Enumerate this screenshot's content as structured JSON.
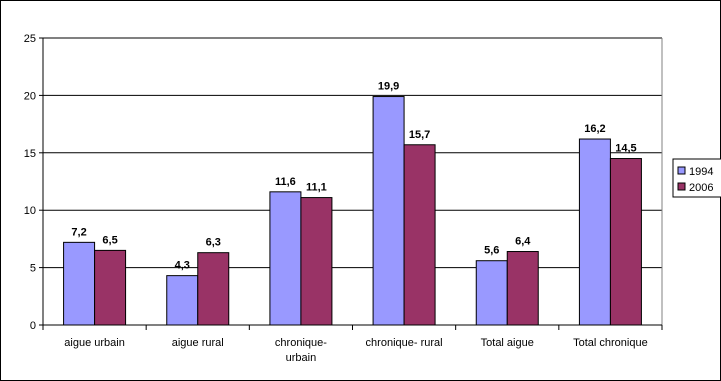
{
  "chart_data": {
    "type": "bar",
    "title": "",
    "xlabel": "",
    "ylabel": "",
    "ylim": [
      0,
      25
    ],
    "y_ticks": [
      0,
      5,
      10,
      15,
      20,
      25
    ],
    "grid": true,
    "legend_position": "right",
    "categories": [
      [
        "aigue urbain"
      ],
      [
        "aigue rural"
      ],
      [
        "chronique-",
        "urbain"
      ],
      [
        "chronique- rural"
      ],
      [
        "Total aigue"
      ],
      [
        "Total chronique"
      ]
    ],
    "series": [
      {
        "name": "1994",
        "color": "#9999ff",
        "values": [
          7.2,
          4.3,
          11.6,
          19.9,
          5.6,
          16.2
        ],
        "labels": [
          "7,2",
          "4,3",
          "11,6",
          "19,9",
          "5,6",
          "16,2"
        ]
      },
      {
        "name": "2006",
        "color": "#993366",
        "values": [
          6.5,
          6.3,
          11.1,
          15.7,
          6.4,
          14.5
        ],
        "labels": [
          "6,5",
          "6,3",
          "11,1",
          "15,7",
          "6,4",
          "14,5"
        ]
      }
    ]
  }
}
